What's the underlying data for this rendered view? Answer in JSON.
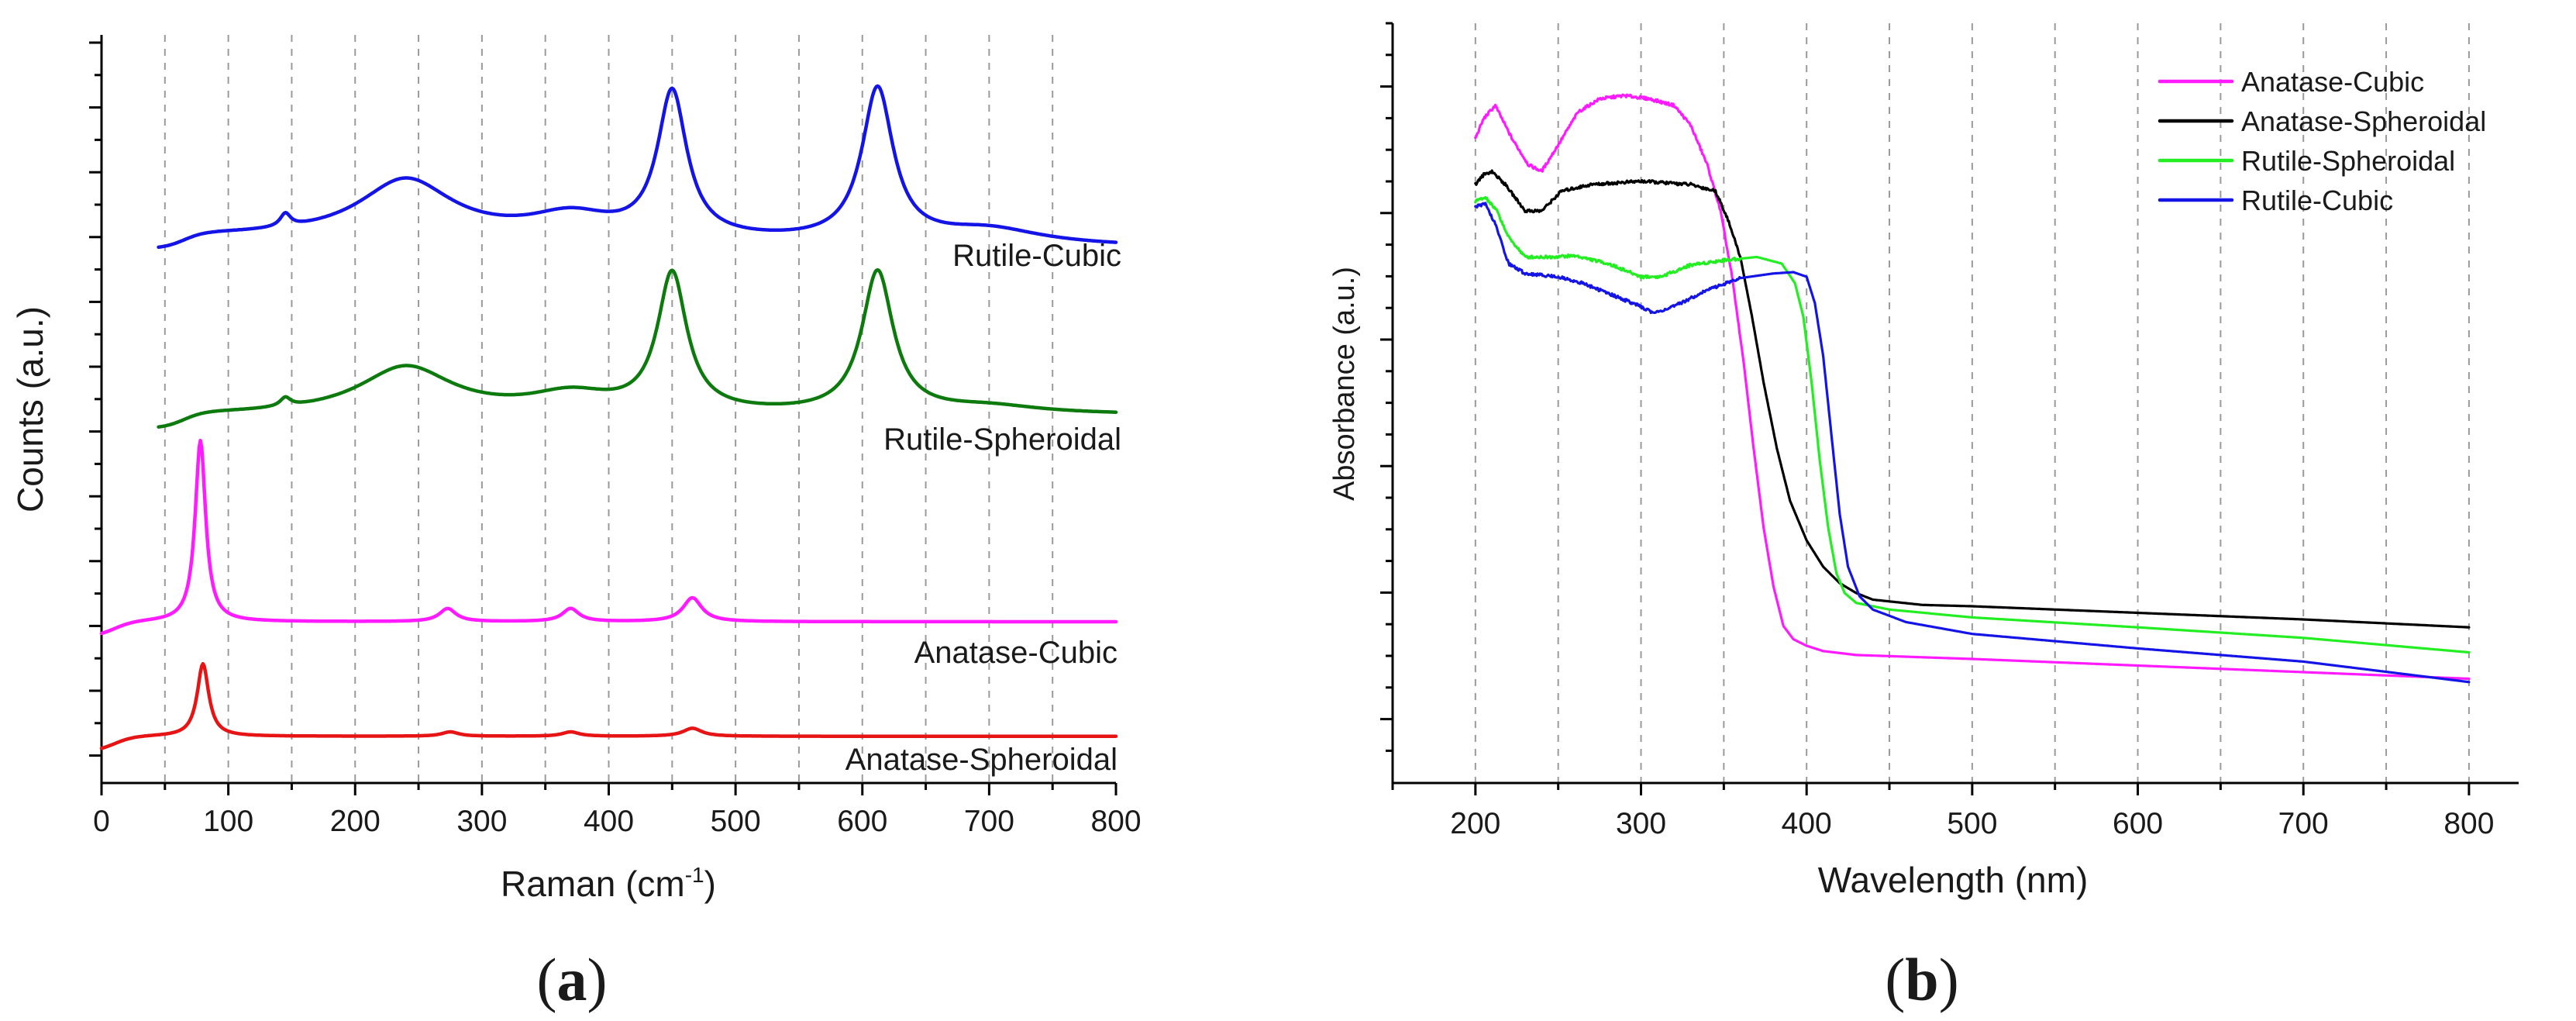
{
  "colors": {
    "blue": "#1414e6",
    "green": "#0d7a0d",
    "magenta": "#ff1aff",
    "red": "#e61414",
    "black": "#000000",
    "lime": "#22ee22"
  },
  "panels": {
    "a": {
      "open": "(",
      "letter": "a",
      "close": ")"
    },
    "b": {
      "open": "(",
      "letter": "b",
      "close": ")"
    }
  },
  "chart_data": [
    {
      "id": "a",
      "type": "line",
      "title": "",
      "xlabel_main": "Raman (cm",
      "xlabel_sup": "-1",
      "xlabel_close": ")",
      "ylabel": "Counts (a.u.)",
      "xlim": [
        0,
        800
      ],
      "ylim": [
        0,
        100
      ],
      "xticks": [
        0,
        100,
        200,
        300,
        400,
        500,
        600,
        700,
        800
      ],
      "xtick_labels": [
        "0",
        "100",
        "200",
        "300",
        "400",
        "500",
        "600",
        "700",
        "800"
      ],
      "yticks_unlabeled": true,
      "series": [
        {
          "name": "Rutile-Cubic",
          "color_key": "blue",
          "baseline": 71,
          "slope": -0.2,
          "x_range": [
            45,
            800
          ],
          "onset": 65,
          "peaks": [
            [
              145,
              1.8,
              5
            ],
            [
              240,
              8,
              45
            ],
            [
              450,
              20,
              14
            ],
            [
              612,
              21,
              15
            ],
            [
              370,
              3,
              40
            ],
            [
              700,
              2,
              50
            ]
          ]
        },
        {
          "name": "Rutile-Spheroidal",
          "color_key": "green",
          "baseline": 47,
          "slope": 0,
          "x_range": [
            45,
            800
          ],
          "onset": 65,
          "peaks": [
            [
              145,
              1.2,
              5
            ],
            [
              240,
              6.5,
              45
            ],
            [
              450,
              19,
              14
            ],
            [
              612,
              19.5,
              15
            ],
            [
              370,
              2.5,
              40
            ],
            [
              700,
              1,
              50
            ]
          ]
        },
        {
          "name": "Anatase-Cubic",
          "color_key": "magenta",
          "baseline": 18.5,
          "slope": 0,
          "x_range": [
            0,
            800
          ],
          "onset": 10,
          "peaks": [
            [
              78,
              25,
              5
            ],
            [
              273,
              1.8,
              8
            ],
            [
              370,
              1.8,
              8
            ],
            [
              466,
              3.3,
              9
            ]
          ]
        },
        {
          "name": "Anatase-Spheroidal",
          "color_key": "red",
          "baseline": 2.7,
          "slope": 0,
          "x_range": [
            0,
            800
          ],
          "onset": 10,
          "peaks": [
            [
              80,
              10,
              5.5
            ],
            [
              275,
              0.6,
              8
            ],
            [
              370,
              0.6,
              8
            ],
            [
              466,
              1.1,
              9
            ]
          ]
        }
      ],
      "curve_labels": [
        "Rutile-Cubic",
        "Rutile-Spheroidal",
        "Anatase-Cubic",
        "Anatase-Spheroidal"
      ]
    },
    {
      "id": "b",
      "type": "line",
      "title": "",
      "xlabel": "Wavelength (nm)",
      "ylabel": "Absorbance (a.u.)",
      "xlim": [
        150,
        830
      ],
      "ylim": [
        0,
        100
      ],
      "xticks": [
        200,
        300,
        400,
        500,
        600,
        700,
        800
      ],
      "xtick_labels": [
        "200",
        "300",
        "400",
        "500",
        "600",
        "700",
        "800"
      ],
      "minor_xticks": [
        250,
        350,
        450,
        550,
        650,
        750
      ],
      "yticks_unlabeled": true,
      "legend_position": "top-right",
      "series": [
        {
          "name": "Anatase-Cubic",
          "color_key": "magenta",
          "points": [
            [
              200,
              89
            ],
            [
              205,
              92
            ],
            [
              212,
              94
            ],
            [
              222,
              89
            ],
            [
              232,
              85
            ],
            [
              240,
              84
            ],
            [
              250,
              88
            ],
            [
              262,
              93
            ],
            [
              275,
              95
            ],
            [
              290,
              95.5
            ],
            [
              305,
              95
            ],
            [
              320,
              94
            ],
            [
              330,
              91
            ],
            [
              340,
              85
            ],
            [
              348,
              78
            ],
            [
              355,
              68
            ],
            [
              362,
              55
            ],
            [
              368,
              42
            ],
            [
              374,
              30
            ],
            [
              380,
              21
            ],
            [
              386,
              15
            ],
            [
              392,
              13
            ],
            [
              400,
              12
            ],
            [
              410,
              11.2
            ],
            [
              430,
              10.6
            ],
            [
              500,
              10
            ],
            [
              600,
              9
            ],
            [
              700,
              8
            ],
            [
              800,
              7
            ]
          ]
        },
        {
          "name": "Anatase-Spheroidal",
          "color_key": "black",
          "points": [
            [
              200,
              82
            ],
            [
              205,
              83.5
            ],
            [
              210,
              84
            ],
            [
              218,
              82
            ],
            [
              230,
              78
            ],
            [
              240,
              78
            ],
            [
              252,
              81
            ],
            [
              270,
              82
            ],
            [
              300,
              82.5
            ],
            [
              330,
              82
            ],
            [
              345,
              81
            ],
            [
              352,
              77
            ],
            [
              360,
              71
            ],
            [
              367,
              62
            ],
            [
              374,
              52
            ],
            [
              382,
              42
            ],
            [
              390,
              34
            ],
            [
              400,
              28
            ],
            [
              410,
              24
            ],
            [
              420,
              21.5
            ],
            [
              430,
              20
            ],
            [
              440,
              19
            ],
            [
              470,
              18.2
            ],
            [
              500,
              18
            ],
            [
              600,
              17
            ],
            [
              700,
              16
            ],
            [
              800,
              14.8
            ]
          ]
        },
        {
          "name": "Rutile-Spheroidal",
          "color_key": "lime",
          "points": [
            [
              200,
              79.5
            ],
            [
              206,
              80
            ],
            [
              213,
              78
            ],
            [
              220,
              74
            ],
            [
              230,
              71
            ],
            [
              245,
              71
            ],
            [
              260,
              71.2
            ],
            [
              280,
              70
            ],
            [
              300,
              68
            ],
            [
              312,
              68
            ],
            [
              330,
              69.8
            ],
            [
              350,
              70.5
            ],
            [
              370,
              71
            ],
            [
              385,
              70
            ],
            [
              393,
              67
            ],
            [
              398,
              62
            ],
            [
              403,
              52
            ],
            [
              408,
              40
            ],
            [
              413,
              30
            ],
            [
              418,
              23
            ],
            [
              423,
              20
            ],
            [
              430,
              18.5
            ],
            [
              450,
              17.5
            ],
            [
              500,
              16.3
            ],
            [
              600,
              14.8
            ],
            [
              700,
              13.2
            ],
            [
              800,
              11
            ]
          ]
        },
        {
          "name": "Rutile-Cubic",
          "color_key": "blue",
          "points": [
            [
              200,
              78.7
            ],
            [
              206,
              79
            ],
            [
              212,
              76
            ],
            [
              220,
              70
            ],
            [
              230,
              68.5
            ],
            [
              250,
              68
            ],
            [
              265,
              67
            ],
            [
              280,
              65.5
            ],
            [
              295,
              64
            ],
            [
              308,
              62.5
            ],
            [
              320,
              63.5
            ],
            [
              340,
              66
            ],
            [
              360,
              67.8
            ],
            [
              380,
              68.5
            ],
            [
              392,
              68.7
            ],
            [
              400,
              68
            ],
            [
              405,
              64
            ],
            [
              410,
              56
            ],
            [
              415,
              44
            ],
            [
              420,
              32
            ],
            [
              425,
              24
            ],
            [
              432,
              19.5
            ],
            [
              440,
              17.5
            ],
            [
              460,
              15.6
            ],
            [
              500,
              13.8
            ],
            [
              600,
              11.6
            ],
            [
              700,
              9.6
            ],
            [
              800,
              6.5
            ]
          ]
        }
      ],
      "legend": [
        "Anatase-Cubic",
        "Anatase-Spheroidal",
        "Rutile-Spheroidal",
        "Rutile-Cubic"
      ]
    }
  ]
}
